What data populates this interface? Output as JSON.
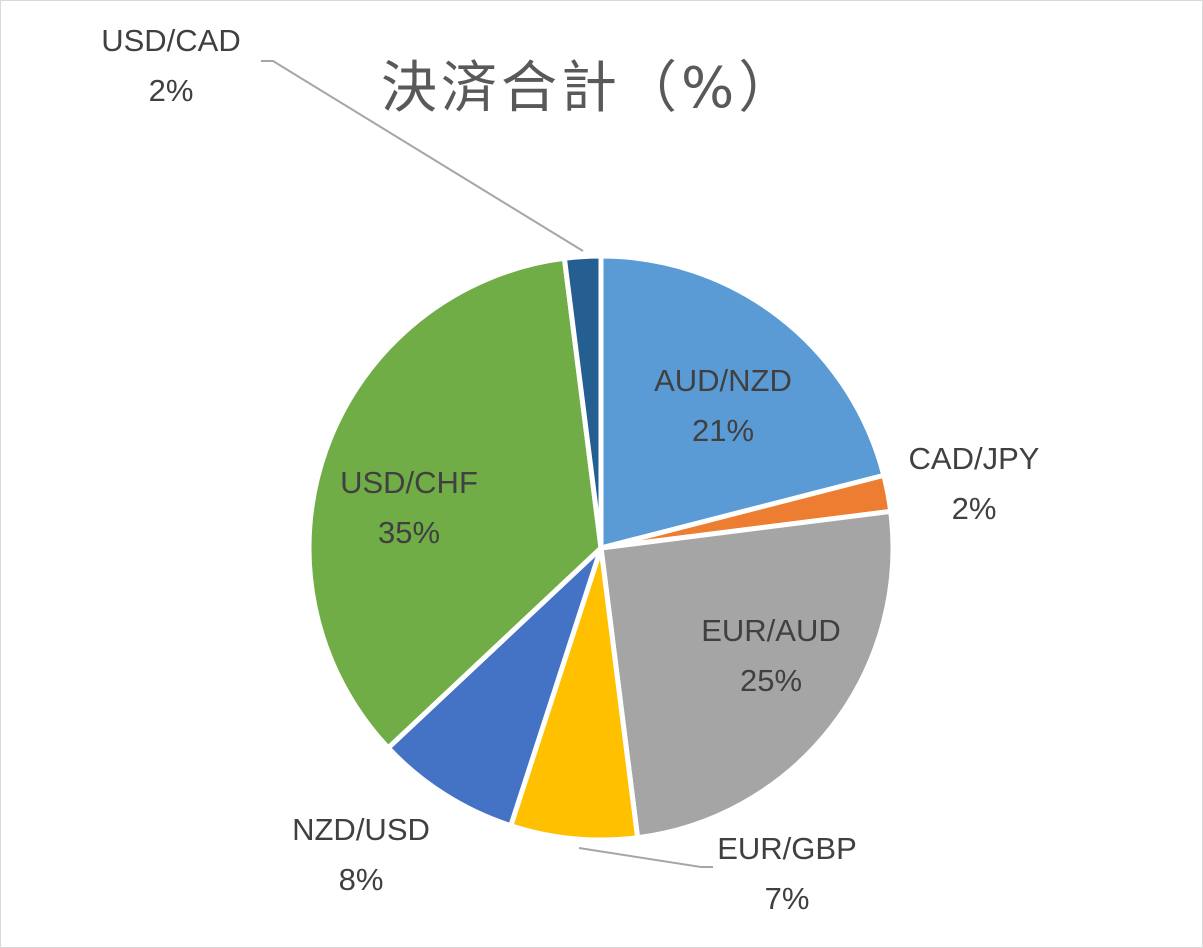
{
  "chart_data": {
    "type": "pie",
    "title": "決済合計（%）",
    "start_angle_deg": 0,
    "direction": "clockwise",
    "slices": [
      {
        "label": "AUD/NZD",
        "value": 21,
        "value_label": "21%",
        "color": "#5b9bd5",
        "label_position": "inside"
      },
      {
        "label": "CAD/JPY",
        "value": 2,
        "value_label": "2%",
        "color": "#ed7d31",
        "label_position": "outside"
      },
      {
        "label": "EUR/AUD",
        "value": 25,
        "value_label": "25%",
        "color": "#a5a5a5",
        "label_position": "inside"
      },
      {
        "label": "EUR/GBP",
        "value": 7,
        "value_label": "7%",
        "color": "#ffc000",
        "label_position": "outside"
      },
      {
        "label": "NZD/USD",
        "value": 8,
        "value_label": "8%",
        "color": "#4472c4",
        "label_position": "outside"
      },
      {
        "label": "USD/CHF",
        "value": 35,
        "value_label": "35%",
        "color": "#70ad47",
        "label_position": "inside"
      },
      {
        "label": "USD/CAD",
        "value": 2,
        "value_label": "2%",
        "color": "#255e91",
        "label_position": "outside"
      }
    ],
    "legend": "none"
  }
}
